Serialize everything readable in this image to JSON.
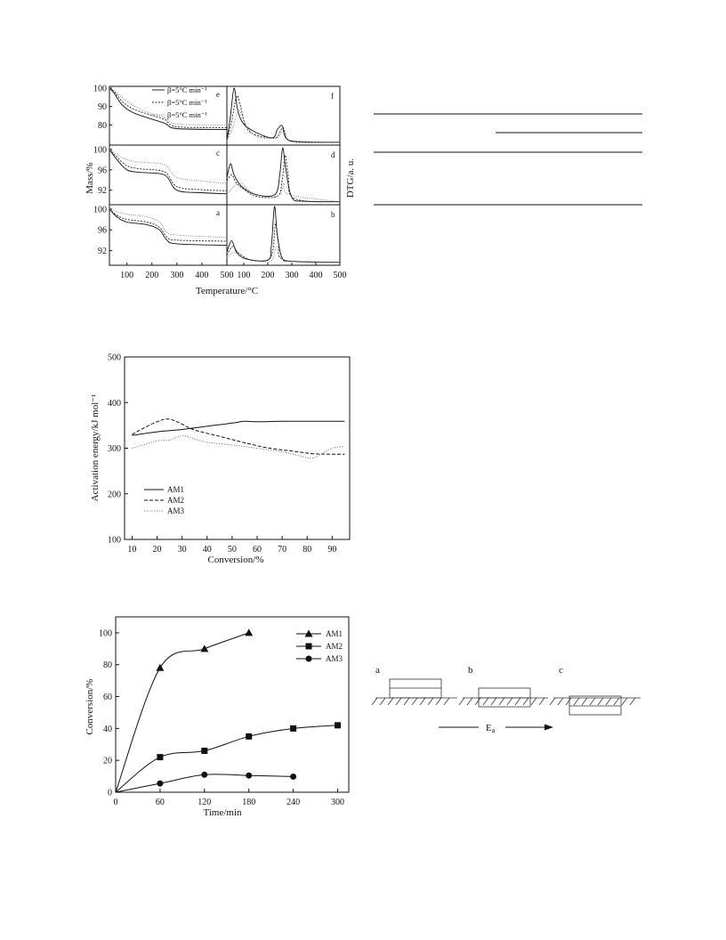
{
  "chart_data": [
    {
      "id": "tg-dtg",
      "type": "line",
      "ylabel_left": "Mass/%",
      "ylabel_right": "DTG/a. u.",
      "xlabel": "Temperature/°C",
      "legend": [
        "β=5°C min⁻¹",
        "β=5°C min⁻¹",
        "β=5°C min⁻¹"
      ],
      "panels": [
        {
          "label": "e",
          "side": "left",
          "ylim": [
            70,
            100
          ],
          "yticks": [
            "100",
            "90",
            "80"
          ]
        },
        {
          "label": "f",
          "side": "right"
        },
        {
          "label": "c",
          "side": "left",
          "ylim": [
            89.5,
            100.5
          ],
          "yticks": [
            "100",
            "96",
            "92"
          ]
        },
        {
          "label": "d",
          "side": "right"
        },
        {
          "label": "a",
          "side": "left",
          "ylim": [
            89.5,
            100.5
          ],
          "yticks": [
            "100",
            "96",
            "92"
          ]
        },
        {
          "label": "b",
          "side": "right"
        }
      ],
      "xticks_left": [
        "100",
        "200",
        "300",
        "400",
        "500"
      ],
      "xticks_right": [
        "100",
        "200",
        "300",
        "400",
        "500"
      ],
      "series": {
        "e": [
          [
            [
              30,
              100
            ],
            [
              50,
              97
            ],
            [
              80,
              91
            ],
            [
              120,
              87
            ],
            [
              180,
              84
            ],
            [
              250,
              81
            ],
            [
              300,
              78
            ],
            [
              500,
              77.5
            ]
          ],
          [
            [
              30,
              100
            ],
            [
              50,
              98
            ],
            [
              80,
              93
            ],
            [
              120,
              89
            ],
            [
              180,
              86
            ],
            [
              250,
              83
            ],
            [
              300,
              79
            ],
            [
              500,
              78.5
            ]
          ],
          [
            [
              30,
              100
            ],
            [
              50,
              98.5
            ],
            [
              80,
              95
            ],
            [
              120,
              91
            ],
            [
              180,
              87
            ],
            [
              250,
              84
            ],
            [
              300,
              80.5
            ],
            [
              500,
              80
            ]
          ]
        ],
        "c": [
          [
            [
              30,
              100
            ],
            [
              60,
              98
            ],
            [
              100,
              96
            ],
            [
              150,
              95.5
            ],
            [
              250,
              95
            ],
            [
              300,
              92
            ],
            [
              400,
              91.5
            ],
            [
              500,
              91.3
            ]
          ],
          [
            [
              30,
              100
            ],
            [
              60,
              98.5
            ],
            [
              100,
              96.8
            ],
            [
              150,
              96.2
            ],
            [
              250,
              95.6
            ],
            [
              300,
              92.7
            ],
            [
              400,
              92.1
            ],
            [
              500,
              91.9
            ]
          ],
          [
            [
              30,
              100
            ],
            [
              60,
              99
            ],
            [
              100,
              98
            ],
            [
              150,
              97.5
            ],
            [
              250,
              97
            ],
            [
              300,
              94.5
            ],
            [
              400,
              93.8
            ],
            [
              500,
              93.3
            ]
          ]
        ],
        "a": [
          [
            [
              30,
              100
            ],
            [
              60,
              98.5
            ],
            [
              100,
              97.5
            ],
            [
              180,
              97
            ],
            [
              230,
              96
            ],
            [
              260,
              94
            ],
            [
              300,
              93.3
            ],
            [
              500,
              93
            ]
          ],
          [
            [
              30,
              100
            ],
            [
              60,
              98.8
            ],
            [
              100,
              98
            ],
            [
              180,
              97.5
            ],
            [
              230,
              96.5
            ],
            [
              260,
              94.6
            ],
            [
              300,
              94
            ],
            [
              500,
              93.8
            ]
          ],
          [
            [
              30,
              100
            ],
            [
              60,
              99.5
            ],
            [
              100,
              99
            ],
            [
              180,
              98.5
            ],
            [
              230,
              97.5
            ],
            [
              260,
              95.5
            ],
            [
              300,
              95
            ],
            [
              500,
              94.5
            ]
          ]
        ],
        "f": [
          [
            [
              30,
              0.05
            ],
            [
              45,
              0.5
            ],
            [
              60,
              1.0
            ],
            [
              75,
              0.6
            ],
            [
              100,
              0.35
            ],
            [
              150,
              0.2
            ],
            [
              220,
              0.1
            ],
            [
              240,
              0.25
            ],
            [
              260,
              0.32
            ],
            [
              275,
              0.1
            ],
            [
              320,
              0.03
            ],
            [
              500,
              0.02
            ]
          ],
          [
            [
              30,
              0.05
            ],
            [
              50,
              0.4
            ],
            [
              70,
              0.85
            ],
            [
              85,
              0.7
            ],
            [
              110,
              0.3
            ],
            [
              150,
              0.15
            ],
            [
              230,
              0.1
            ],
            [
              250,
              0.2
            ],
            [
              265,
              0.28
            ],
            [
              280,
              0.08
            ],
            [
              330,
              0.02
            ],
            [
              500,
              0.02
            ]
          ],
          [
            [
              30,
              0.05
            ],
            [
              55,
              0.3
            ],
            [
              80,
              0.6
            ],
            [
              100,
              0.4
            ],
            [
              130,
              0.2
            ],
            [
              170,
              0.1
            ],
            [
              240,
              0.1
            ],
            [
              260,
              0.22
            ],
            [
              275,
              0.2
            ],
            [
              300,
              0.05
            ],
            [
              500,
              0.02
            ]
          ]
        ],
        "d": [
          [
            [
              30,
              0.45
            ],
            [
              45,
              0.7
            ],
            [
              60,
              0.5
            ],
            [
              90,
              0.3
            ],
            [
              150,
              0.15
            ],
            [
              230,
              0.15
            ],
            [
              250,
              0.5
            ],
            [
              262,
              0.98
            ],
            [
              275,
              0.6
            ],
            [
              300,
              0.1
            ],
            [
              350,
              0.03
            ],
            [
              500,
              0.02
            ]
          ],
          [
            [
              30,
              0.4
            ],
            [
              50,
              0.5
            ],
            [
              70,
              0.35
            ],
            [
              100,
              0.25
            ],
            [
              150,
              0.12
            ],
            [
              240,
              0.12
            ],
            [
              260,
              0.4
            ],
            [
              272,
              0.85
            ],
            [
              285,
              0.5
            ],
            [
              310,
              0.08
            ],
            [
              500,
              0.02
            ]
          ],
          [
            [
              30,
              0.15
            ],
            [
              60,
              0.3
            ],
            [
              90,
              0.35
            ],
            [
              130,
              0.2
            ],
            [
              200,
              0.1
            ],
            [
              250,
              0.15
            ],
            [
              268,
              0.35
            ],
            [
              290,
              0.15
            ],
            [
              500,
              0.02
            ]
          ]
        ],
        "b": [
          [
            [
              30,
              0.2
            ],
            [
              50,
              0.4
            ],
            [
              70,
              0.2
            ],
            [
              110,
              0.08
            ],
            [
              200,
              0.06
            ],
            [
              215,
              0.3
            ],
            [
              228,
              1.0
            ],
            [
              240,
              0.5
            ],
            [
              260,
              0.1
            ],
            [
              300,
              0.04
            ],
            [
              500,
              0.02
            ]
          ],
          [
            [
              30,
              0.15
            ],
            [
              55,
              0.3
            ],
            [
              80,
              0.18
            ],
            [
              130,
              0.06
            ],
            [
              200,
              0.06
            ],
            [
              222,
              0.25
            ],
            [
              232,
              0.7
            ],
            [
              245,
              0.35
            ],
            [
              270,
              0.06
            ],
            [
              500,
              0.02
            ]
          ],
          [
            [
              30,
              0.1
            ],
            [
              60,
              0.2
            ],
            [
              90,
              0.12
            ],
            [
              150,
              0.05
            ],
            [
              215,
              0.05
            ],
            [
              235,
              0.3
            ],
            [
              250,
              0.2
            ],
            [
              280,
              0.05
            ],
            [
              500,
              0.02
            ]
          ]
        ]
      }
    },
    {
      "id": "activation-energy",
      "type": "line",
      "xlabel": "Conversion/%",
      "ylabel": "Activation energy/kJ mol⁻¹",
      "xlim": [
        7,
        97
      ],
      "ylim": [
        100,
        500
      ],
      "xticks": [
        10,
        20,
        30,
        40,
        50,
        60,
        70,
        80,
        90
      ],
      "yticks": [
        100,
        200,
        300,
        400,
        500
      ],
      "legend_position": "bottom-left",
      "series": [
        {
          "name": "AM1",
          "style": "solid",
          "points": [
            [
              10,
              328
            ],
            [
              20,
              336
            ],
            [
              30,
              341
            ],
            [
              40,
              348
            ],
            [
              50,
              355
            ],
            [
              55,
              359
            ],
            [
              60,
              358
            ],
            [
              70,
              359
            ],
            [
              80,
              359
            ],
            [
              95,
              359
            ]
          ]
        },
        {
          "name": "AM2",
          "style": "dashed",
          "points": [
            [
              10,
              330
            ],
            [
              15,
              345
            ],
            [
              20,
              358
            ],
            [
              24,
              364
            ],
            [
              28,
              358
            ],
            [
              35,
              340
            ],
            [
              45,
              326
            ],
            [
              55,
              312
            ],
            [
              65,
              300
            ],
            [
              75,
              293
            ],
            [
              82,
              288
            ],
            [
              88,
              287
            ],
            [
              95,
              287
            ]
          ]
        },
        {
          "name": "AM3",
          "style": "dotted",
          "points": [
            [
              10,
              300
            ],
            [
              15,
              308
            ],
            [
              20,
              316
            ],
            [
              25,
              318
            ],
            [
              30,
              327
            ],
            [
              34,
              322
            ],
            [
              40,
              313
            ],
            [
              50,
              307
            ],
            [
              60,
              300
            ],
            [
              70,
              292
            ],
            [
              78,
              282
            ],
            [
              82,
              278
            ],
            [
              86,
              288
            ],
            [
              90,
              300
            ],
            [
              95,
              304
            ]
          ]
        }
      ]
    },
    {
      "id": "conversion-time",
      "type": "line",
      "xlabel": "Time/min",
      "ylabel": "Conversion/%",
      "xlim": [
        0,
        315
      ],
      "ylim": [
        0,
        110
      ],
      "xticks": [
        0,
        60,
        120,
        180,
        240,
        300
      ],
      "yticks": [
        0,
        20,
        40,
        60,
        80,
        100
      ],
      "legend_position": "top-right",
      "series": [
        {
          "name": "AM1",
          "marker": "triangle",
          "points": [
            [
              0,
              0
            ],
            [
              60,
              78
            ],
            [
              120,
              90
            ],
            [
              180,
              100
            ]
          ]
        },
        {
          "name": "AM2",
          "marker": "square",
          "points": [
            [
              0,
              0
            ],
            [
              60,
              22
            ],
            [
              120,
              26
            ],
            [
              180,
              35
            ],
            [
              240,
              40
            ],
            [
              300,
              42
            ]
          ]
        },
        {
          "name": "AM3",
          "marker": "circle",
          "points": [
            [
              0,
              0
            ],
            [
              60,
              5.5
            ],
            [
              120,
              11
            ],
            [
              180,
              10.5
            ],
            [
              240,
              9.8
            ]
          ]
        }
      ]
    }
  ],
  "diagram": {
    "labels": [
      "a",
      "b",
      "c"
    ],
    "arrow_label": "E",
    "arrow_subscript": "a"
  }
}
